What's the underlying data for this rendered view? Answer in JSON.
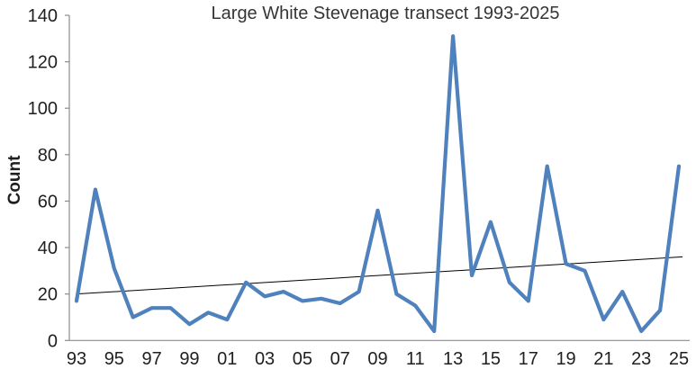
{
  "chart": {
    "title": "Large White Stevenage transect 1993-2025",
    "y_axis_title": "Count"
  },
  "chart_data": {
    "type": "line",
    "title": "Large White Stevenage transect 1993-2025",
    "ylabel": "Count",
    "xlabel": "",
    "years": [
      1993,
      1994,
      1995,
      1996,
      1997,
      1998,
      1999,
      2000,
      2001,
      2002,
      2003,
      2004,
      2005,
      2006,
      2007,
      2008,
      2009,
      2010,
      2011,
      2012,
      2013,
      2014,
      2015,
      2016,
      2017,
      2018,
      2019,
      2020,
      2021,
      2022,
      2023,
      2024,
      2025
    ],
    "values": [
      17,
      65,
      31,
      10,
      14,
      14,
      7,
      12,
      9,
      25,
      19,
      21,
      17,
      18,
      16,
      21,
      56,
      20,
      15,
      4,
      131,
      28,
      51,
      25,
      17,
      75,
      33,
      30,
      9,
      21,
      4,
      13,
      75
    ],
    "x_tick_labels": [
      "93",
      "95",
      "97",
      "99",
      "01",
      "03",
      "05",
      "07",
      "09",
      "11",
      "13",
      "15",
      "17",
      "19",
      "21",
      "23",
      "25"
    ],
    "y_ticks": [
      0,
      20,
      40,
      60,
      80,
      100,
      120,
      140
    ],
    "ylim": [
      0,
      140
    ],
    "grid": false,
    "legend": false,
    "trendline": {
      "type": "linear",
      "start_value": 20,
      "end_value": 36
    },
    "colors": {
      "series_line": "#4F81BD",
      "trend_line": "#000000",
      "axis_line": "#8c8c8c",
      "tick_text": "#1f1f1f",
      "title_text": "#353535"
    }
  }
}
